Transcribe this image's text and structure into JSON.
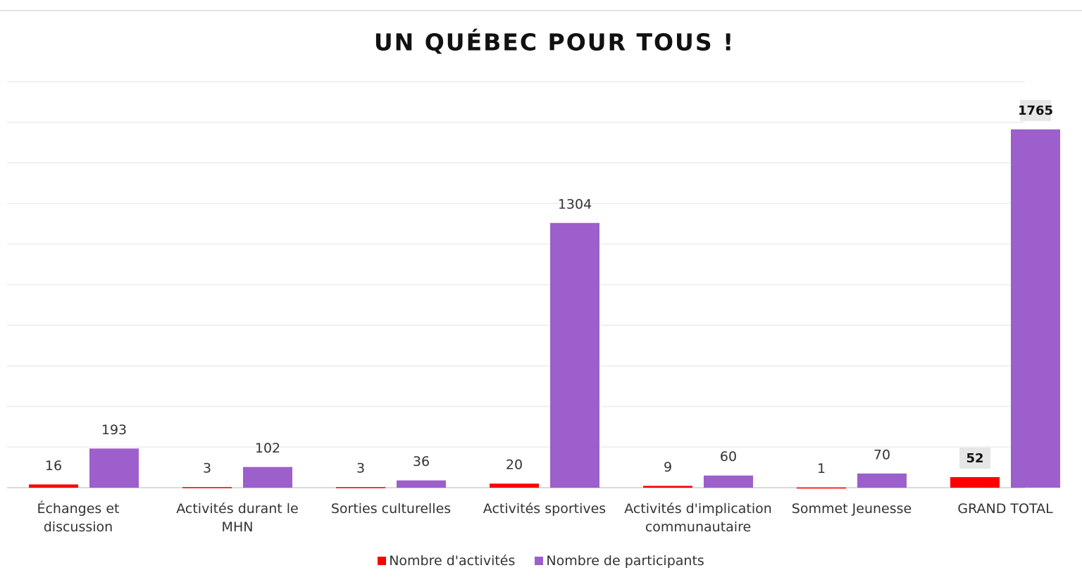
{
  "chart_data": {
    "type": "bar",
    "title": "UN QUÉBEC POUR TOUS !",
    "categories": [
      "Échanges et discussion",
      "Activités durant le MHN",
      "Sorties culturelles",
      "Activités sportives",
      "Activités d'implication communautaire",
      "Sommet Jeunesse",
      "GRAND TOTAL"
    ],
    "series": [
      {
        "name": "Nombre d'activités",
        "color": "#ff0000",
        "values": [
          16,
          3,
          3,
          20,
          9,
          1,
          52
        ]
      },
      {
        "name": "Nombre de participants",
        "color": "#9d5fcc",
        "values": [
          193,
          102,
          36,
          1304,
          60,
          70,
          1765
        ]
      }
    ],
    "ylim": [
      0,
      2000
    ],
    "yticks": [
      0,
      200,
      400,
      600,
      800,
      1000,
      1200,
      1400,
      1600,
      1800,
      2000
    ],
    "grid": true,
    "legend": "bottom"
  }
}
